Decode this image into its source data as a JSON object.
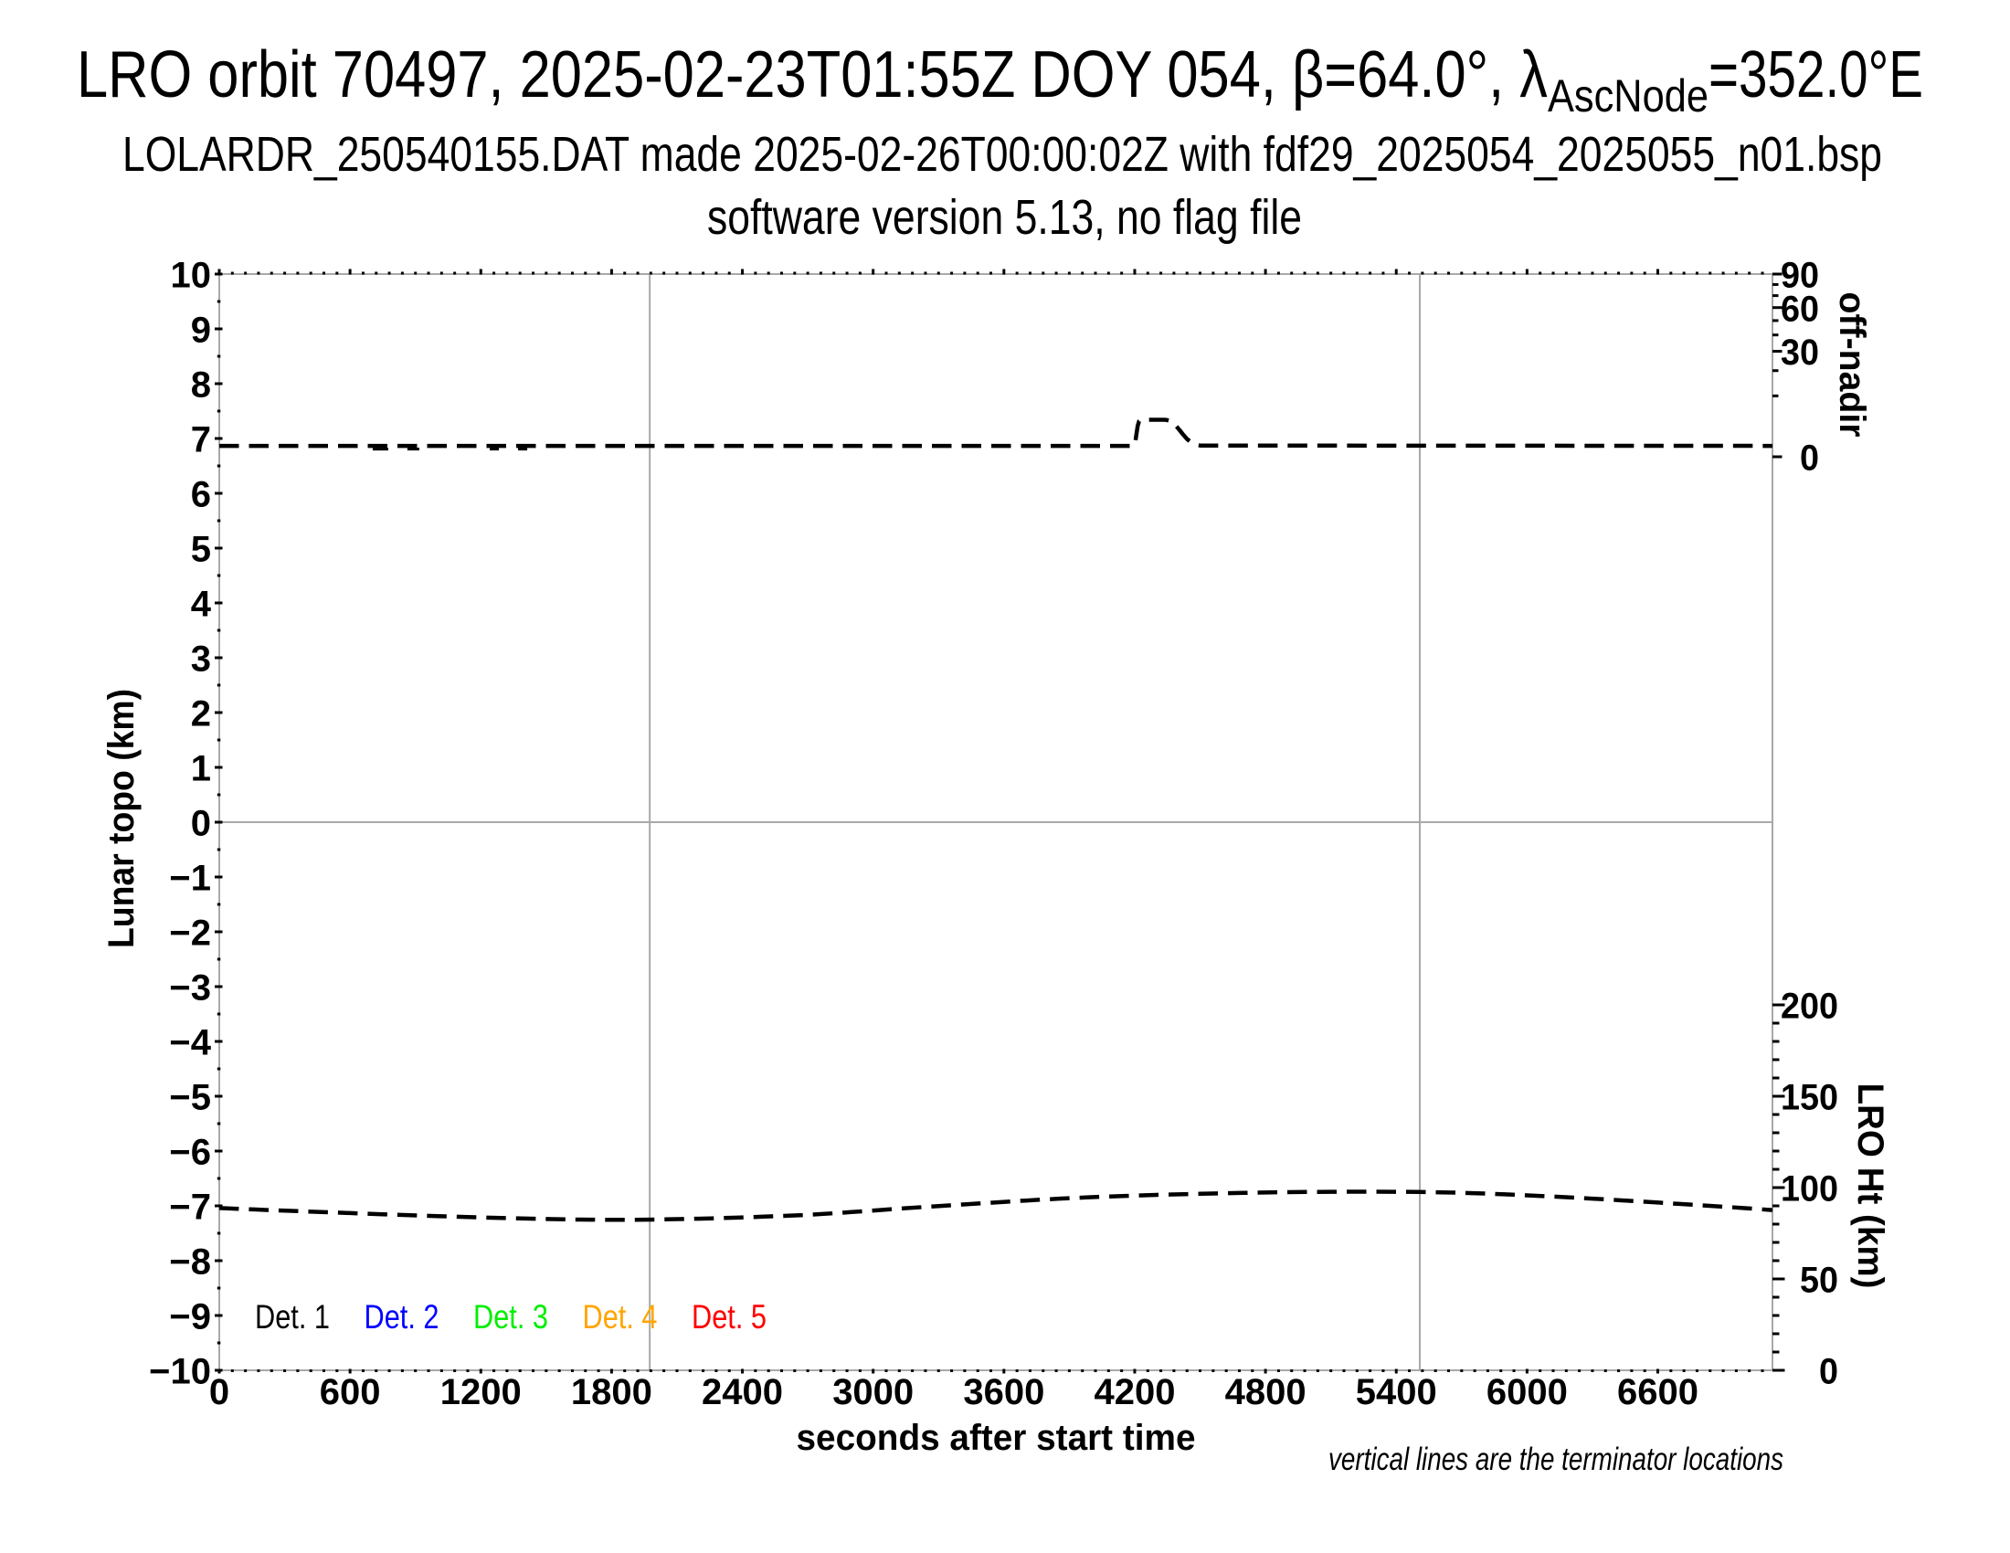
{
  "figure": {
    "title_line1_pre": "LRO orbit 70497, 2025-02-23T01:55Z DOY 054, β=64.0°, λ",
    "title_line1_sub": "AscNode",
    "title_line1_post": "=352.0°E",
    "title_line2": "LOLARDR_250540155.DAT made 2025-02-26T00:00:02Z with fdf29_2025054_2025055_n01.bsp",
    "title_line3": "software version 5.13, no flag file",
    "footnote": "vertical lines are the terminator locations"
  },
  "chart_data": {
    "type": "line",
    "colors": {
      "frame_gray": "#a9a9a9",
      "curve": "#000000",
      "text": "#000000"
    },
    "xlabel": "seconds after start time",
    "xlim": [
      0,
      7126
    ],
    "x_major_ticks": [
      0,
      600,
      1200,
      1800,
      2400,
      3000,
      3600,
      4200,
      4800,
      5400,
      6000,
      6600
    ],
    "x_minor_step": 60,
    "left_axis": {
      "label": "Lunar topo (km)",
      "lim": [
        -10,
        10
      ],
      "major_step": 1,
      "minor_step": 0.5,
      "tick_labels": [
        "10",
        "9",
        "8",
        "7",
        "6",
        "5",
        "4",
        "3",
        "2",
        "1",
        "0",
        "−1",
        "−2",
        "−3",
        "−4",
        "−5",
        "−6",
        "−7",
        "−8",
        "−9",
        "−10"
      ]
    },
    "right_top_axis": {
      "label": "off-nadir",
      "scale": "sqrt",
      "lim": [
        0,
        90
      ],
      "tick_step": 10,
      "labeled_ticks": [
        90,
        60,
        30,
        0
      ]
    },
    "right_bottom_axis": {
      "label": "LRO Ht (km)",
      "lim": [
        0,
        200
      ],
      "minor_step": 10,
      "labeled_ticks": [
        200,
        150,
        100,
        50,
        0
      ]
    },
    "terminator_lines_s": [
      1975,
      5508
    ],
    "grid": {
      "zero_line": 0
    },
    "legend": [
      {
        "label": "Det. 1",
        "color": "#000000"
      },
      {
        "label": "Det. 2",
        "color": "#0000ff"
      },
      {
        "label": "Det. 3",
        "color": "#00ee00"
      },
      {
        "label": "Det. 4",
        "color": "#ffa500"
      },
      {
        "label": "Det. 5",
        "color": "#ff0000"
      }
    ],
    "series": [
      {
        "name": "spacecraft off-nadir angle",
        "axis": "right_top",
        "style": "dashed",
        "color": "#000000",
        "points": [
          [
            0,
            0.32
          ],
          [
            4195,
            0.32
          ],
          [
            4202,
            0.5
          ],
          [
            4208,
            1.4
          ],
          [
            4214,
            2.6
          ],
          [
            4220,
            3.4
          ],
          [
            4228,
            3.66
          ],
          [
            4240,
            3.7
          ],
          [
            4330,
            3.7
          ],
          [
            4345,
            3.66
          ],
          [
            4360,
            3.5
          ],
          [
            4375,
            3.1
          ],
          [
            4390,
            2.55
          ],
          [
            4405,
            1.95
          ],
          [
            4420,
            1.4
          ],
          [
            4440,
            0.85
          ],
          [
            4460,
            0.55
          ],
          [
            4480,
            0.4
          ],
          [
            4500,
            0.34
          ],
          [
            7126,
            0.32
          ]
        ]
      },
      {
        "name": "LRO height above surface",
        "axis": "right_bottom",
        "style": "dashed",
        "color": "#000000",
        "points": [
          [
            0,
            88.8
          ],
          [
            250,
            87.6
          ],
          [
            500,
            86.5
          ],
          [
            750,
            85.4
          ],
          [
            1000,
            84.4
          ],
          [
            1250,
            83.5
          ],
          [
            1500,
            82.8
          ],
          [
            1700,
            82.45
          ],
          [
            1900,
            82.4
          ],
          [
            2100,
            82.75
          ],
          [
            2300,
            83.3
          ],
          [
            2500,
            84.1
          ],
          [
            2700,
            85.1
          ],
          [
            2900,
            86.6
          ],
          [
            3100,
            88.3
          ],
          [
            3300,
            89.9
          ],
          [
            3500,
            91.4
          ],
          [
            3700,
            92.9
          ],
          [
            3900,
            94.2
          ],
          [
            4100,
            95.2
          ],
          [
            4300,
            96.0
          ],
          [
            4500,
            96.6
          ],
          [
            4700,
            97.1
          ],
          [
            4900,
            97.5
          ],
          [
            5100,
            97.7
          ],
          [
            5300,
            97.75
          ],
          [
            5500,
            97.6
          ],
          [
            5700,
            97.15
          ],
          [
            5900,
            96.3
          ],
          [
            6100,
            95.2
          ],
          [
            6300,
            93.95
          ],
          [
            6500,
            92.55
          ],
          [
            6700,
            91.05
          ],
          [
            6900,
            89.55
          ],
          [
            7126,
            87.7
          ]
        ]
      }
    ],
    "offnadir_noise_marks_s": [
      [
        704,
        775
      ],
      [
        863,
        918
      ],
      [
        1241,
        1283
      ],
      [
        1371,
        1413
      ]
    ]
  }
}
